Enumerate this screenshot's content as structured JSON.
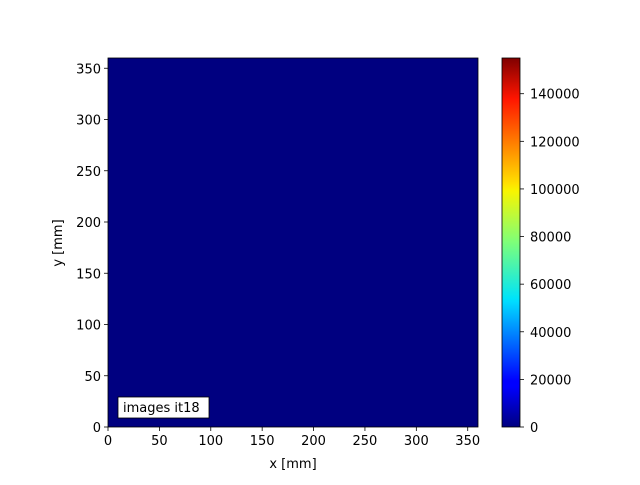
{
  "chart_data": {
    "type": "heatmap",
    "xlabel": "x [mm]",
    "ylabel": "y [mm]",
    "xlim": [
      0,
      360
    ],
    "ylim": [
      0,
      360
    ],
    "xticks": [
      0,
      50,
      100,
      150,
      200,
      250,
      300,
      350
    ],
    "yticks": [
      0,
      50,
      100,
      150,
      200,
      250,
      300,
      350
    ],
    "field_value": 0,
    "field_color": "#000080",
    "colormap": "jet",
    "colorbar": {
      "range": [
        0,
        155000
      ],
      "ticks": [
        0,
        20000,
        40000,
        60000,
        80000,
        100000,
        120000,
        140000
      ]
    },
    "annotation": "images it18",
    "grid": false
  }
}
